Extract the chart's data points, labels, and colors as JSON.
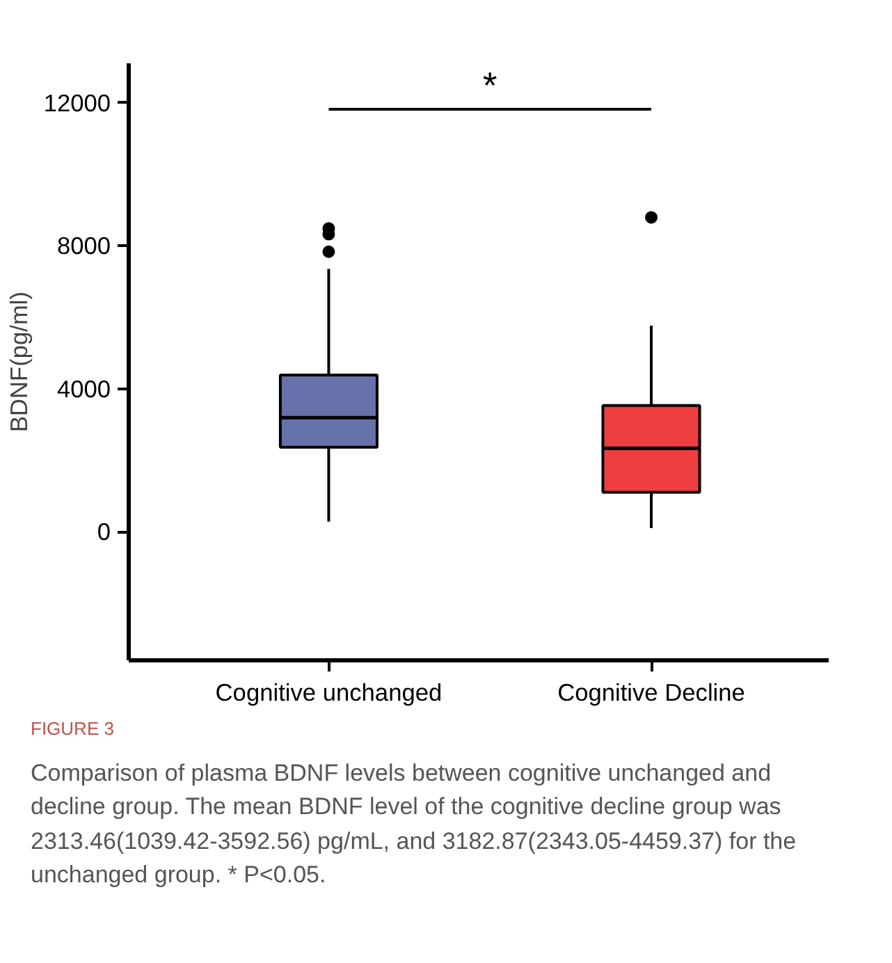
{
  "chart_data": {
    "type": "box",
    "ylabel": "BDNF(pg/ml)",
    "categories": [
      "Cognitive unchanged",
      "Cognitive Decline"
    ],
    "colors": [
      "#6872aa",
      "#ee3e3f"
    ],
    "boxes": [
      {
        "low": 280,
        "q1": 2360,
        "median": 3190,
        "q3": 4380,
        "high": 7350,
        "outliers": [
          8480,
          8320,
          7830
        ]
      },
      {
        "low": 100,
        "q1": 1100,
        "median": 2330,
        "q3": 3530,
        "high": 5760,
        "outliers": [
          8790
        ]
      }
    ],
    "ylim": [
      -3600,
      13100
    ],
    "yticks": [
      0,
      4000,
      8000,
      12000
    ],
    "grid": false,
    "annotations": [
      "*",
      "FIGURE 3",
      "Comparison of plasma BDNF levels between cognitive unchanged and decline group. The mean BDNF level of the cognitive decline group was 2313.46(1039.42-3592.56) pg/mL, and 3182.87(2343.05-4459.37) for the unchanged group. * P<0.05."
    ]
  }
}
